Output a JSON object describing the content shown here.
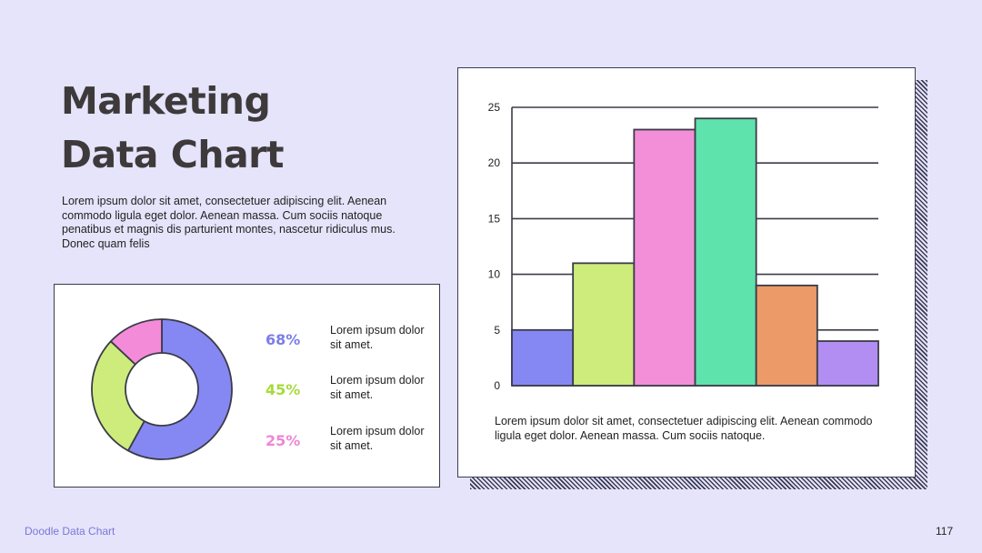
{
  "slide": {
    "title_line1": "Marketing",
    "title_line2": "Data Chart",
    "intro": "Lorem ipsum dolor sit amet, consectetuer adipiscing elit. Aenean commodo ligula eget dolor. Aenean massa. Cum sociis natoque penatibus et magnis dis parturient montes, nascetur ridiculus mus. Donec quam felis",
    "footer_left": "Doodle Data Chart",
    "page_number": "117"
  },
  "stats": [
    {
      "value": "68%",
      "text": "Lorem ipsum dolor sit amet.",
      "color": "#7b7ee8"
    },
    {
      "value": "45%",
      "text": "Lorem ipsum dolor sit amet.",
      "color": "#a6db3b"
    },
    {
      "value": "25%",
      "text": "Lorem ipsum dolor sit amet.",
      "color": "#ee86d4"
    }
  ],
  "bar_caption": "Lorem ipsum dolor sit amet, consectetuer adipiscing elit. Aenean commodo ligula eget dolor. Aenean massa. Cum sociis natoque.",
  "chart_data": [
    {
      "type": "pie",
      "style": "donut",
      "slices": [
        {
          "value": 58,
          "color": "#8588f2"
        },
        {
          "value": 29,
          "color": "#cdec7c"
        },
        {
          "value": 13,
          "color": "#f38bd9"
        }
      ]
    },
    {
      "type": "bar",
      "categories": [
        "",
        "",
        "",
        "",
        "",
        ""
      ],
      "values": [
        5,
        11,
        23,
        24,
        9,
        4
      ],
      "colors": [
        "#8588f2",
        "#cdec7c",
        "#f38fd9",
        "#5fe3ad",
        "#ec9a68",
        "#b28ef2"
      ],
      "yticks": [
        0,
        5,
        10,
        15,
        20,
        25
      ],
      "ylim": [
        0,
        25
      ],
      "grid": true,
      "title": "",
      "xlabel": "",
      "ylabel": ""
    }
  ]
}
